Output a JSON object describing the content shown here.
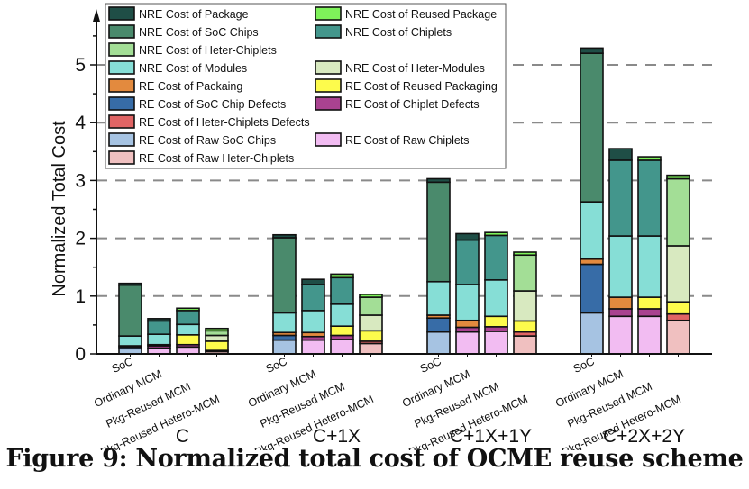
{
  "caption": "Figure 9: Normalized total cost of OCME reuse scheme",
  "chart_data": {
    "type": "bar",
    "stacked": true,
    "title": "",
    "xlabel": "",
    "ylabel": "Normalized Total Cost",
    "ylim": [
      0,
      5.6
    ],
    "yticks": [
      0,
      1,
      2,
      3,
      4,
      5
    ],
    "ytick_labels": [
      "0",
      "1",
      "2",
      "3",
      "4",
      "5"
    ],
    "grid": "dashed horizontal at 1-5",
    "legend_position": "top-left",
    "groups": [
      "C",
      "C+1X",
      "C+1X+1Y",
      "C+2X+2Y"
    ],
    "bar_labels": [
      "SoC",
      "Ordinary  MCM",
      "Pkg-Reused  MCM",
      "Pkg-Reused Hetero-MCM"
    ],
    "legend": [
      {
        "key": "nre_package",
        "label": "NRE Cost of Package",
        "color": "#1f4e46"
      },
      {
        "key": "nre_reused_package",
        "label": "NRE Cost of Reused Package",
        "color": "#7ef25a"
      },
      {
        "key": "nre_soc",
        "label": "NRE Cost of SoC Chips",
        "color": "#4a8a6c"
      },
      {
        "key": "nre_chiplets",
        "label": "NRE Cost of Chiplets",
        "color": "#43968c"
      },
      {
        "key": "nre_heter_chiplets",
        "label": "NRE Cost of Heter-Chiplets",
        "color": "#a3de96"
      },
      {
        "key": "nre_modules",
        "label": "NRE Cost of Modules",
        "color": "#86ded6"
      },
      {
        "key": "nre_heter_modules",
        "label": "NRE Cost of Heter-Modules",
        "color": "#d8e9c0"
      },
      {
        "key": "re_packaging",
        "label": "RE Cost of Packaing",
        "color": "#e38a3e"
      },
      {
        "key": "re_reused_packaging",
        "label": "RE Cost of Reused Packaging",
        "color": "#fdfb4c"
      },
      {
        "key": "re_soc_defects",
        "label": "RE Cost of SoC Chip Defects",
        "color": "#376ca7"
      },
      {
        "key": "re_chiplet_defects",
        "label": "RE Cost of Chiplet Defects",
        "color": "#a94290"
      },
      {
        "key": "re_heter_defects",
        "label": "RE Cost of Heter-Chiplets Defects",
        "color": "#e06464"
      },
      {
        "key": "re_raw_soc",
        "label": "RE Cost of Raw SoC Chips",
        "color": "#a6c3e2"
      },
      {
        "key": "re_raw_chiplets",
        "label": "RE Cost of Raw Chiplets",
        "color": "#f2bcf2"
      },
      {
        "key": "re_raw_heter",
        "label": "RE Cost of Raw Heter-Chiplets",
        "color": "#f0c0c0"
      }
    ],
    "series_data": [
      {
        "group": "C",
        "bars": [
          {
            "label": "SoC",
            "total": 1.22,
            "segments": [
              [
                "re_raw_soc",
                0.09
              ],
              [
                "re_soc_defects",
                0.03
              ],
              [
                "re_packaging",
                0.02
              ],
              [
                "nre_modules",
                0.17
              ],
              [
                "nre_soc",
                0.88
              ],
              [
                "nre_package",
                0.03
              ]
            ]
          },
          {
            "label": "Ordinary MCM",
            "total": 0.61,
            "segments": [
              [
                "re_raw_chiplets",
                0.1
              ],
              [
                "re_chiplet_defects",
                0.04
              ],
              [
                "re_packaging",
                0.02
              ],
              [
                "nre_modules",
                0.18
              ],
              [
                "nre_chiplets",
                0.23
              ],
              [
                "nre_package",
                0.04
              ]
            ]
          },
          {
            "label": "Pkg-Reused MCM",
            "total": 0.79,
            "segments": [
              [
                "re_raw_chiplets",
                0.12
              ],
              [
                "re_chiplet_defects",
                0.04
              ],
              [
                "re_reused_packaging",
                0.17
              ],
              [
                "nre_modules",
                0.18
              ],
              [
                "nre_chiplets",
                0.24
              ],
              [
                "nre_reused_package",
                0.04
              ]
            ]
          },
          {
            "label": "Pkg-Reused Hetero-MCM",
            "total": 0.44,
            "segments": [
              [
                "re_raw_heter",
                0.04
              ],
              [
                "re_heter_defects",
                0.02
              ],
              [
                "re_reused_packaging",
                0.16
              ],
              [
                "nre_heter_modules",
                0.1
              ],
              [
                "nre_heter_chiplets",
                0.08
              ],
              [
                "nre_reused_package",
                0.04
              ]
            ]
          }
        ]
      },
      {
        "group": "C+1X",
        "bars": [
          {
            "label": "SoC",
            "total": 2.06,
            "segments": [
              [
                "re_raw_soc",
                0.24
              ],
              [
                "re_soc_defects",
                0.08
              ],
              [
                "re_packaging",
                0.05
              ],
              [
                "nre_modules",
                0.34
              ],
              [
                "nre_soc",
                1.3
              ],
              [
                "nre_package",
                0.05
              ]
            ]
          },
          {
            "label": "Ordinary MCM",
            "total": 1.29,
            "segments": [
              [
                "re_raw_chiplets",
                0.24
              ],
              [
                "re_chiplet_defects",
                0.06
              ],
              [
                "re_packaging",
                0.07
              ],
              [
                "nre_modules",
                0.38
              ],
              [
                "nre_chiplets",
                0.45
              ],
              [
                "nre_package",
                0.09
              ]
            ]
          },
          {
            "label": "Pkg-Reused MCM",
            "total": 1.38,
            "segments": [
              [
                "re_raw_chiplets",
                0.25
              ],
              [
                "re_chiplet_defects",
                0.07
              ],
              [
                "re_reused_packaging",
                0.16
              ],
              [
                "nre_modules",
                0.38
              ],
              [
                "nre_chiplets",
                0.46
              ],
              [
                "nre_reused_package",
                0.06
              ]
            ]
          },
          {
            "label": "Pkg-Reused Hetero-MCM",
            "total": 1.03,
            "segments": [
              [
                "re_raw_heter",
                0.18
              ],
              [
                "re_heter_defects",
                0.04
              ],
              [
                "re_reused_packaging",
                0.18
              ],
              [
                "nre_heter_modules",
                0.27
              ],
              [
                "nre_heter_chiplets",
                0.31
              ],
              [
                "nre_reused_package",
                0.05
              ]
            ]
          }
        ]
      },
      {
        "group": "C+1X+1Y",
        "bars": [
          {
            "label": "SoC",
            "total": 3.03,
            "segments": [
              [
                "re_raw_soc",
                0.38
              ],
              [
                "re_soc_defects",
                0.24
              ],
              [
                "re_packaging",
                0.05
              ],
              [
                "nre_modules",
                0.58
              ],
              [
                "nre_soc",
                1.72
              ],
              [
                "nre_package",
                0.06
              ]
            ]
          },
          {
            "label": "Ordinary MCM",
            "total": 2.08,
            "segments": [
              [
                "re_raw_chiplets",
                0.38
              ],
              [
                "re_chiplet_defects",
                0.08
              ],
              [
                "re_packaging",
                0.12
              ],
              [
                "nre_modules",
                0.62
              ],
              [
                "nre_chiplets",
                0.77
              ],
              [
                "nre_package",
                0.11
              ]
            ]
          },
          {
            "label": "Pkg-Reused MCM",
            "total": 2.1,
            "segments": [
              [
                "re_raw_chiplets",
                0.39
              ],
              [
                "re_chiplet_defects",
                0.08
              ],
              [
                "re_reused_packaging",
                0.18
              ],
              [
                "nre_modules",
                0.63
              ],
              [
                "nre_chiplets",
                0.77
              ],
              [
                "nre_reused_package",
                0.05
              ]
            ]
          },
          {
            "label": "Pkg-Reused Hetero-MCM",
            "total": 1.76,
            "segments": [
              [
                "re_raw_heter",
                0.31
              ],
              [
                "re_heter_defects",
                0.07
              ],
              [
                "re_reused_packaging",
                0.19
              ],
              [
                "nre_heter_modules",
                0.52
              ],
              [
                "nre_heter_chiplets",
                0.62
              ],
              [
                "nre_reused_package",
                0.05
              ]
            ]
          }
        ]
      },
      {
        "group": "C+2X+2Y",
        "bars": [
          {
            "label": "SoC",
            "total": 5.29,
            "segments": [
              [
                "re_raw_soc",
                0.71
              ],
              [
                "re_soc_defects",
                0.84
              ],
              [
                "re_packaging",
                0.09
              ],
              [
                "nre_modules",
                0.99
              ],
              [
                "nre_soc",
                2.57
              ],
              [
                "nre_package",
                0.09
              ]
            ]
          },
          {
            "label": "Ordinary MCM",
            "total": 3.55,
            "segments": [
              [
                "re_raw_chiplets",
                0.65
              ],
              [
                "re_chiplet_defects",
                0.13
              ],
              [
                "re_packaging",
                0.2
              ],
              [
                "nre_modules",
                1.06
              ],
              [
                "nre_chiplets",
                1.31
              ],
              [
                "nre_package",
                0.2
              ]
            ]
          },
          {
            "label": "Pkg-Reused MCM",
            "total": 3.41,
            "segments": [
              [
                "re_raw_chiplets",
                0.65
              ],
              [
                "re_chiplet_defects",
                0.13
              ],
              [
                "re_reused_packaging",
                0.2
              ],
              [
                "nre_modules",
                1.06
              ],
              [
                "nre_chiplets",
                1.31
              ],
              [
                "nre_reused_package",
                0.06
              ]
            ]
          },
          {
            "label": "Pkg-Reused Hetero-MCM",
            "total": 3.09,
            "segments": [
              [
                "re_raw_heter",
                0.58
              ],
              [
                "re_heter_defects",
                0.11
              ],
              [
                "re_reused_packaging",
                0.21
              ],
              [
                "nre_heter_modules",
                0.97
              ],
              [
                "nre_heter_chiplets",
                1.16
              ],
              [
                "nre_reused_package",
                0.06
              ]
            ]
          }
        ]
      }
    ]
  }
}
